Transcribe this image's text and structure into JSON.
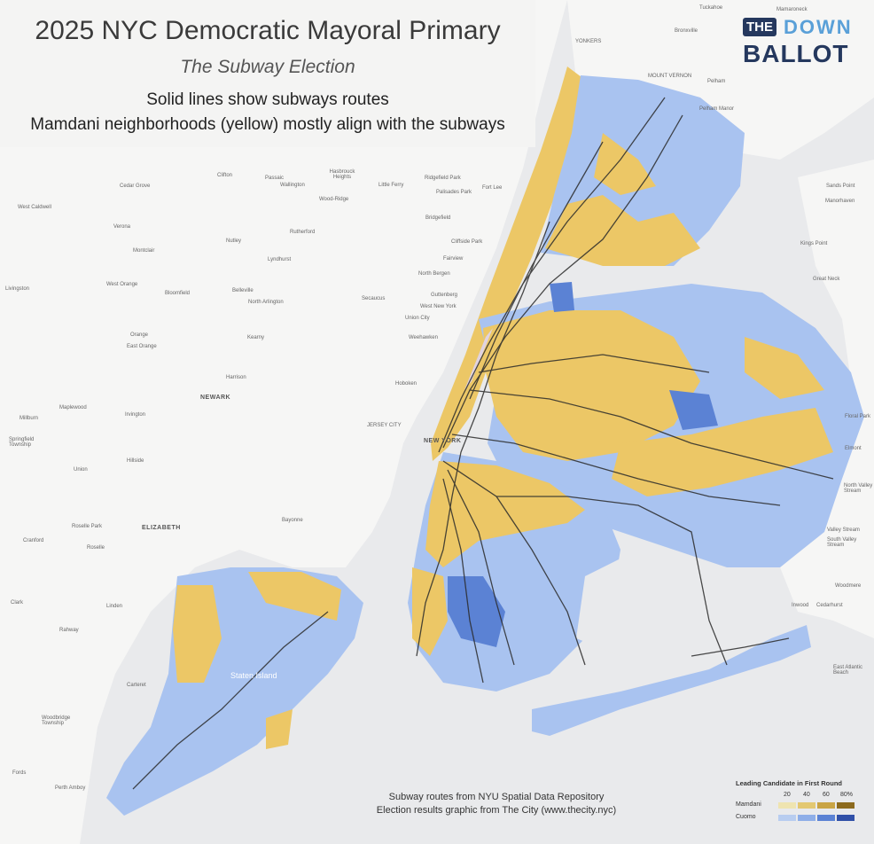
{
  "title": "2025 NYC Democratic Mayoral Primary",
  "subtitle": "The Subway Election",
  "note_lines": [
    "Solid lines show subways routes",
    "Mamdani neighborhoods (yellow) mostly align with the subways"
  ],
  "logo": {
    "top": "THE",
    "top_right": "DOWN",
    "bottom": "BALLOT"
  },
  "credits": [
    "Subway routes from NYU Spatial Data Repository",
    "Election results graphic from The City (www.thecity.nyc)"
  ],
  "legend": {
    "title": "Leading Candidate in First Round",
    "ticks": [
      "20",
      "40",
      "60",
      "80%"
    ],
    "rows": [
      {
        "label": "Mamdani",
        "colors": [
          "#efe4b0",
          "#e3c872",
          "#c9a445",
          "#8c6a1e"
        ]
      },
      {
        "label": "Cuomo",
        "colors": [
          "#b8cdf0",
          "#8eaee8",
          "#5b82d4",
          "#3050a8"
        ]
      }
    ]
  },
  "colors": {
    "water": "#e9eaec",
    "land": "#f6f6f5",
    "mamdani": "#ecc766",
    "cuomo": "#a9c3f0",
    "subway": "#2b2b2b"
  },
  "places": {
    "newark": "NEWARK",
    "elizabeth": "ELIZABETH",
    "jersey_city": "JERSEY CITY",
    "new_york": "NEW YORK",
    "yonkers": "YONKERS",
    "mount_vernon": "MOUNT VERNON",
    "bayonne": "Bayonne",
    "hoboken": "Hoboken",
    "staten_island": "Staten Island",
    "west_caldwell": "West Caldwell",
    "livingston": "Livingston",
    "west_orange": "West Orange",
    "orange": "Orange",
    "east_orange": "East Orange",
    "maplewood": "Maplewood",
    "irvington": "Irvington",
    "millburn": "Millburn",
    "springfield": "Springfield Township",
    "union": "Union",
    "hillside": "Hillside",
    "roselle_park": "Roselle Park",
    "roselle": "Roselle",
    "cranford": "Cranford",
    "linden": "Linden",
    "rahway": "Rahway",
    "clark": "Clark",
    "carteret": "Carteret",
    "woodbridge": "Woodbridge Township",
    "perth_amboy": "Perth Amboy",
    "fords": "Fords",
    "kearny": "Kearny",
    "harrison": "Harrison",
    "belleville": "Belleville",
    "bloomfield": "Bloomfield",
    "nutley": "Nutley",
    "montclair": "Montclair",
    "verona": "Verona",
    "cedar_grove": "Cedar Grove",
    "clifton": "Clifton",
    "passaic": "Passaic",
    "wallington": "Wallington",
    "hasbrouck_heights": "Hasbrouck Heights",
    "wood_ridge": "Wood-Ridge",
    "rutherford": "Rutherford",
    "lyndhurst": "Lyndhurst",
    "north_arlington": "North Arlington",
    "secaucus": "Secaucus",
    "little_ferry": "Little Ferry",
    "ridgefield_park": "Ridgefield Park",
    "palisades_park": "Palisades Park",
    "fort_lee": "Fort Lee",
    "bridgefield": "Bridgefield",
    "cliffside_park": "Cliffside Park",
    "fairview": "Fairview",
    "north_bergen": "North Bergen",
    "guttenberg": "Guttenberg",
    "west_new_york": "West New York",
    "union_city": "Union City",
    "weehawken": "Weehawken",
    "pelham": "Pelham",
    "pelham_manor": "Pelham Manor",
    "bronxville": "Bronxville",
    "tuckahoe": "Tuckahoe",
    "mamaroneck": "Mamaroneck",
    "sands_point": "Sands Point",
    "manorhaven": "Manorhaven",
    "kings_point": "Kings Point",
    "great_neck": "Great Neck",
    "elmont": "Elmont",
    "floral_park": "Floral Park",
    "north_valley_stream": "North Valley Stream",
    "valley_stream": "Valley Stream",
    "south_valley_stream": "South Valley Stream",
    "woodmere": "Woodmere",
    "inwood": "Inwood",
    "cedarhurst": "Cedarhurst",
    "east_atlantic_beach": "East Atlantic Beach"
  }
}
